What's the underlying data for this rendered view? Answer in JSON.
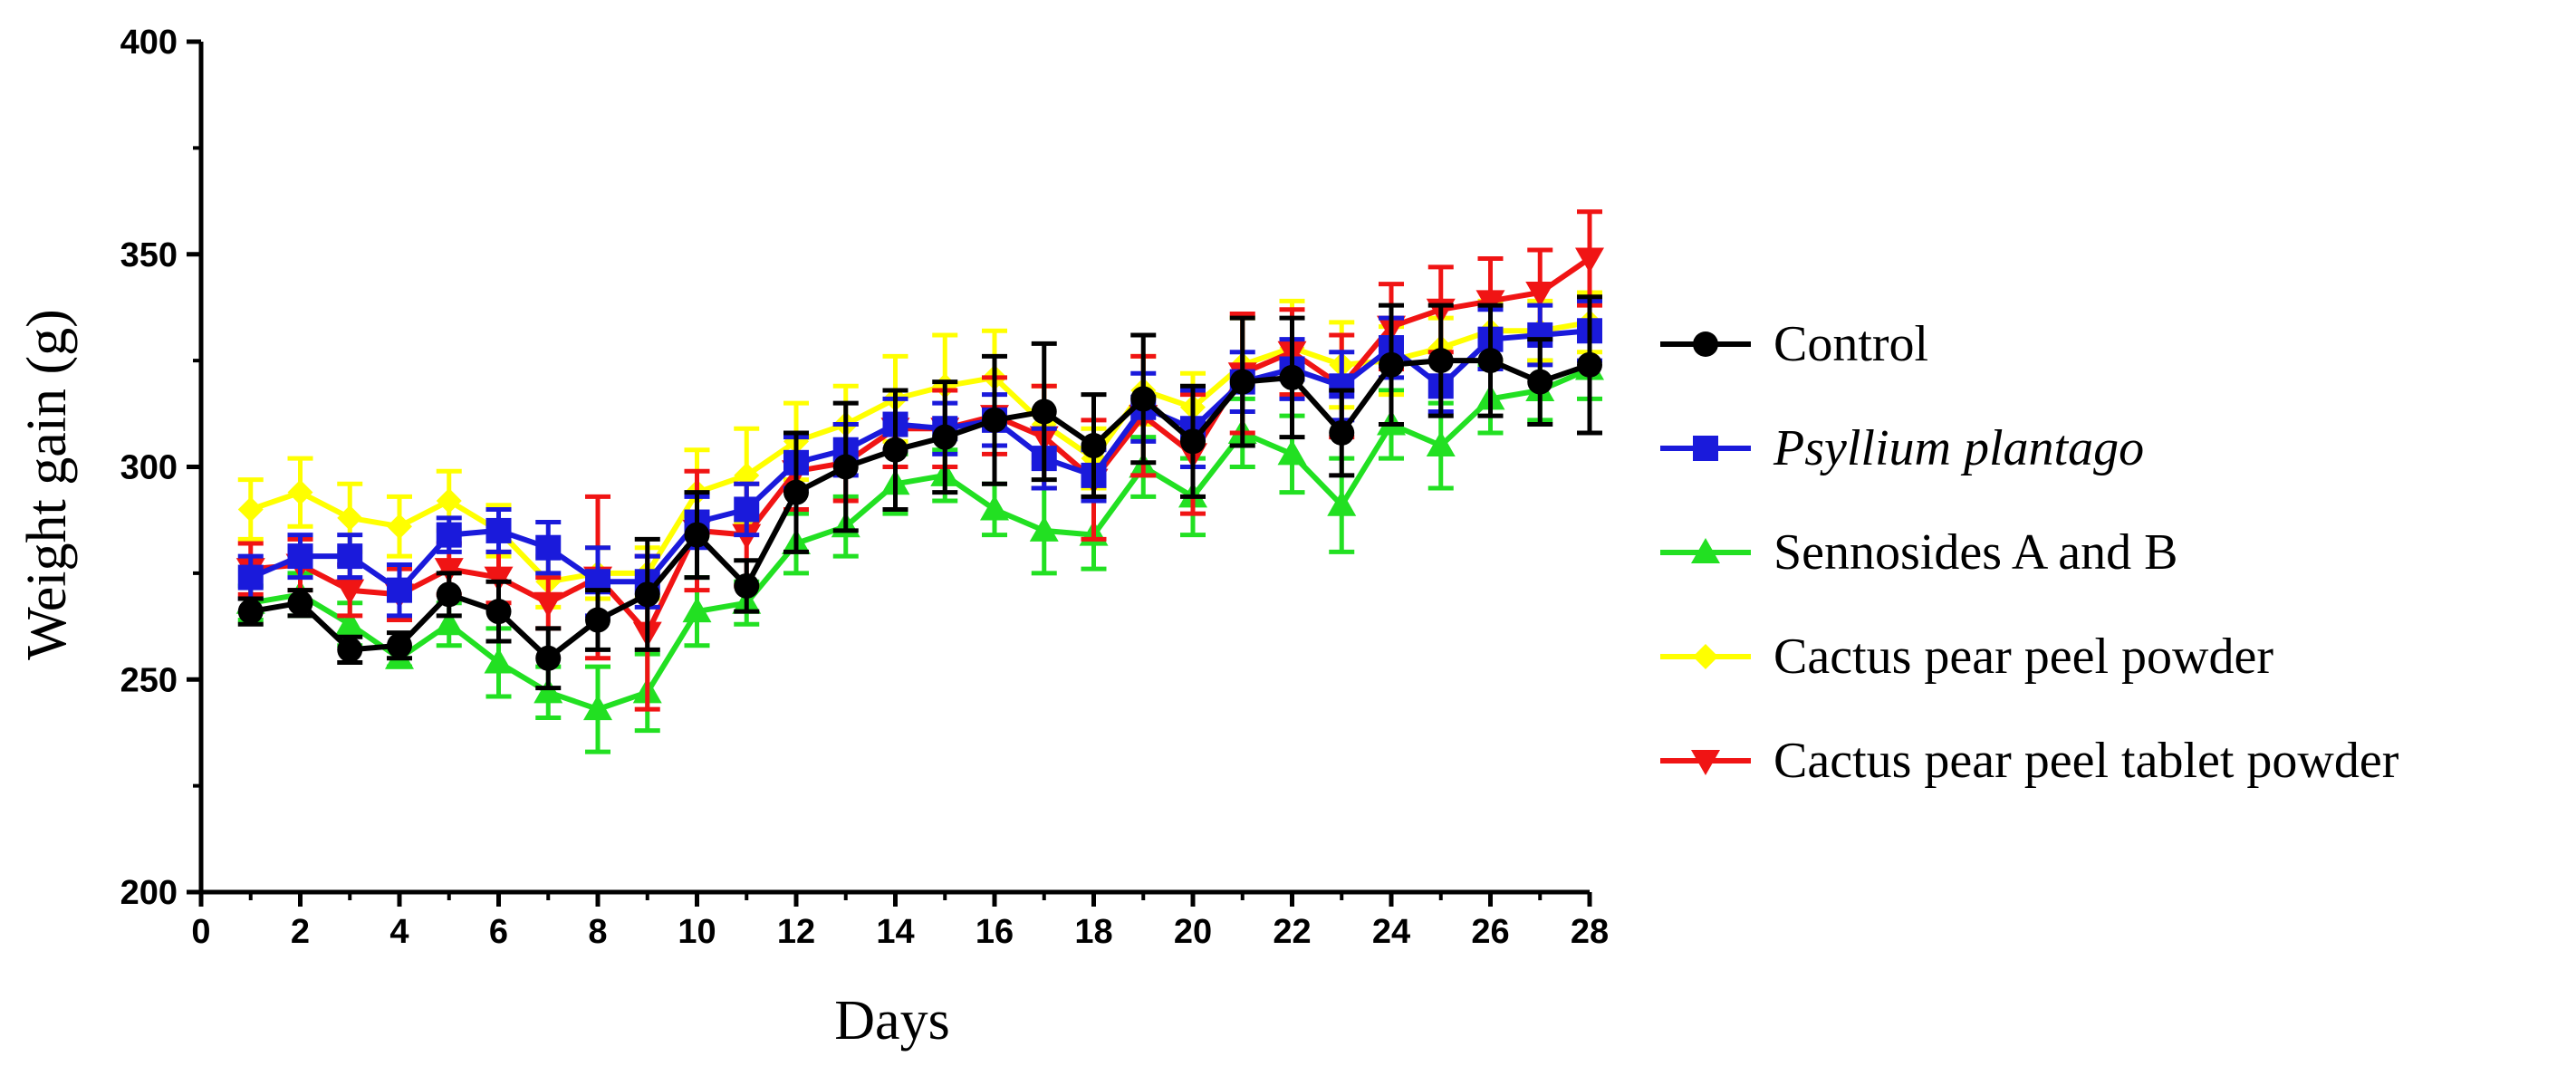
{
  "chart_data": {
    "type": "line",
    "title": "",
    "xlabel": "Days",
    "ylabel": "Weight gain (g)",
    "xlim": [
      0,
      28
    ],
    "ylim": [
      200,
      400
    ],
    "xticks": [
      0,
      2,
      4,
      6,
      8,
      10,
      12,
      14,
      16,
      18,
      20,
      22,
      24,
      26,
      28
    ],
    "yticks": [
      200,
      250,
      300,
      350,
      400
    ],
    "grid": false,
    "legend_position": "right",
    "x": [
      1,
      2,
      3,
      4,
      5,
      6,
      7,
      8,
      9,
      10,
      11,
      12,
      13,
      14,
      15,
      16,
      17,
      18,
      19,
      20,
      21,
      22,
      23,
      24,
      25,
      26,
      27,
      28
    ],
    "series": [
      {
        "name": "Control",
        "italic": false,
        "color": "#000000",
        "marker": "circle",
        "values": [
          266,
          268,
          257,
          258,
          270,
          266,
          255,
          264,
          270,
          284,
          272,
          294,
          300,
          304,
          307,
          311,
          313,
          305,
          316,
          306,
          320,
          321,
          308,
          324,
          325,
          325,
          320,
          324
        ],
        "errors": [
          3,
          3,
          3,
          3,
          5,
          7,
          7,
          7,
          13,
          10,
          6,
          14,
          15,
          14,
          13,
          15,
          16,
          12,
          15,
          13,
          15,
          14,
          10,
          14,
          13,
          13,
          10,
          16
        ]
      },
      {
        "name": "Psyllium plantago",
        "italic": true,
        "color": "#1a1adb",
        "marker": "square",
        "values": [
          274,
          279,
          279,
          271,
          284,
          285,
          281,
          273,
          273,
          287,
          290,
          301,
          304,
          310,
          309,
          311,
          302,
          298,
          314,
          309,
          320,
          323,
          319,
          328,
          319,
          330,
          331,
          332
        ],
        "errors": [
          5,
          5,
          5,
          6,
          4,
          5,
          6,
          8,
          6,
          6,
          6,
          6,
          6,
          6,
          6,
          6,
          7,
          6,
          8,
          9,
          7,
          7,
          8,
          7,
          6,
          7,
          7,
          7
        ]
      },
      {
        "name": "Sennosides A and B",
        "italic": false,
        "color": "#22e022",
        "marker": "triangle-up",
        "values": [
          268,
          270,
          263,
          255,
          263,
          254,
          247,
          243,
          247,
          266,
          268,
          282,
          286,
          296,
          298,
          290,
          285,
          284,
          300,
          293,
          308,
          303,
          291,
          310,
          305,
          316,
          318,
          323
        ],
        "errors": [
          4,
          5,
          5,
          2,
          5,
          8,
          6,
          10,
          9,
          8,
          5,
          7,
          7,
          7,
          6,
          6,
          10,
          8,
          7,
          9,
          8,
          9,
          11,
          8,
          10,
          8,
          7,
          7
        ]
      },
      {
        "name": "Cactus pear peel powder",
        "italic": false,
        "color": "#ffff00",
        "marker": "diamond",
        "values": [
          290,
          294,
          288,
          286,
          292,
          285,
          273,
          275,
          275,
          294,
          298,
          306,
          310,
          316,
          319,
          321,
          310,
          302,
          318,
          314,
          324,
          328,
          324,
          325,
          328,
          332,
          332,
          334
        ],
        "errors": [
          7,
          8,
          8,
          7,
          7,
          6,
          6,
          6,
          6,
          10,
          11,
          9,
          9,
          10,
          12,
          11,
          9,
          7,
          8,
          8,
          11,
          11,
          10,
          8,
          7,
          7,
          7,
          7
        ]
      },
      {
        "name": "Cactus pear peel tablet powder",
        "italic": false,
        "color": "#f01414",
        "marker": "triangle-down",
        "values": [
          276,
          277,
          271,
          270,
          276,
          274,
          268,
          274,
          261,
          285,
          284,
          299,
          301,
          309,
          309,
          312,
          307,
          297,
          312,
          303,
          322,
          327,
          319,
          333,
          337,
          339,
          341,
          349
        ],
        "errors": [
          6,
          6,
          6,
          6,
          6,
          6,
          6,
          19,
          18,
          14,
          12,
          9,
          9,
          9,
          9,
          9,
          12,
          14,
          14,
          14,
          14,
          10,
          12,
          10,
          10,
          10,
          10,
          11
        ]
      }
    ]
  }
}
